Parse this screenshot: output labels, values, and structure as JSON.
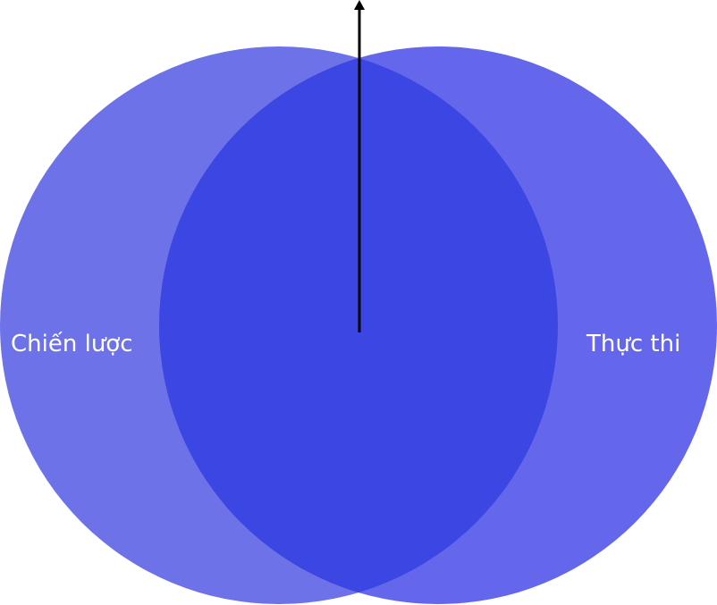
{
  "diagram": {
    "type": "venn",
    "sets": [
      {
        "label": "Chiến lược",
        "color": "#6E72E8"
      },
      {
        "label": "Thực thi",
        "color": "#6467EB"
      }
    ],
    "intersection_color": "#3C46E3",
    "arrow_color": "#000000"
  }
}
